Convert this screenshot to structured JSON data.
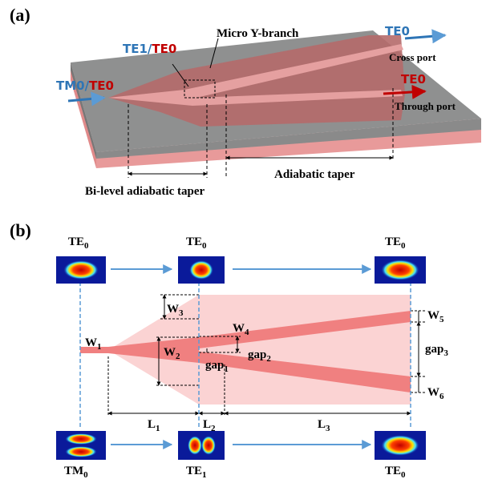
{
  "panel_a": {
    "label": "(a)",
    "input_label": [
      "TM0/",
      "TE0"
    ],
    "branch_mode_label": [
      "TE1/",
      "TE0"
    ],
    "branch_name": "Micro Y-branch",
    "cross_mode": "TE0",
    "cross_port": "Cross port",
    "through_mode": "TE0",
    "through_port": "Through port",
    "bilevel_taper": "Bi-level adiabatic taper",
    "adiabatic_taper": "Adiabatic taper"
  },
  "panel_b": {
    "label": "(b)",
    "top_modes": [
      {
        "base": "TE",
        "sub": "0"
      },
      {
        "base": "TE",
        "sub": "0"
      },
      {
        "base": "TE",
        "sub": "0"
      }
    ],
    "bottom_modes": [
      {
        "base": "TM",
        "sub": "0"
      },
      {
        "base": "TE",
        "sub": "1"
      },
      {
        "base": "TE",
        "sub": "0"
      }
    ],
    "dimensions": [
      {
        "base": "W",
        "sub": "1"
      },
      {
        "base": "W",
        "sub": "2"
      },
      {
        "base": "W",
        "sub": "3"
      },
      {
        "base": "W",
        "sub": "4"
      },
      {
        "base": "W",
        "sub": "5"
      },
      {
        "base": "W",
        "sub": "6"
      },
      {
        "base": "gap",
        "sub": "1"
      },
      {
        "base": "gap",
        "sub": "2"
      },
      {
        "base": "gap",
        "sub": "3"
      },
      {
        "base": "L",
        "sub": "1"
      },
      {
        "base": "L",
        "sub": "2"
      },
      {
        "base": "L",
        "sub": "3"
      }
    ]
  }
}
